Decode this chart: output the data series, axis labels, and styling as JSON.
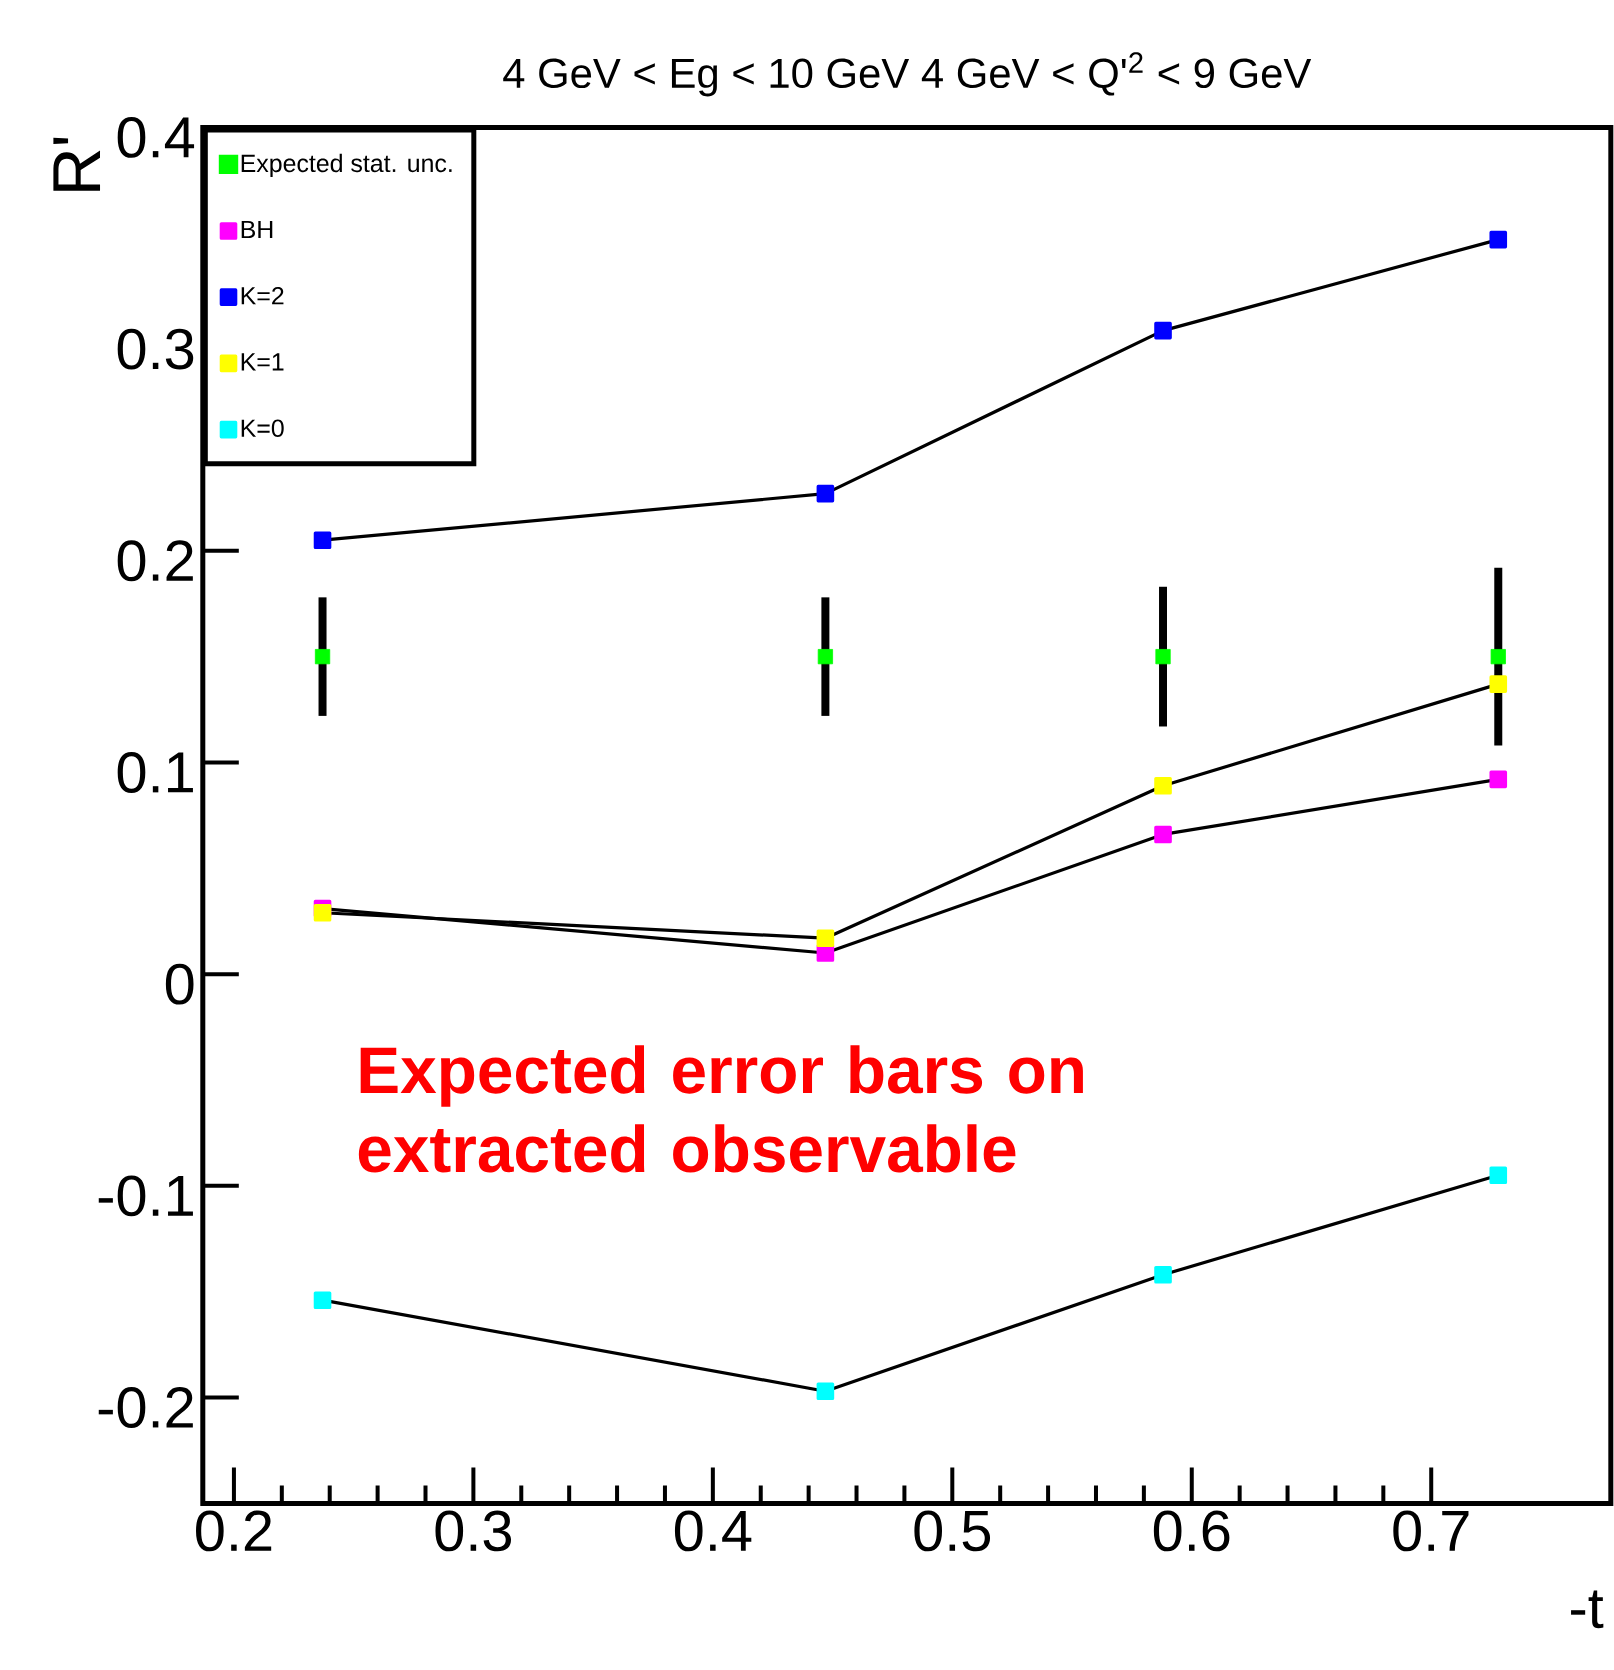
{
  "chart_data": {
    "type": "line",
    "title": "4 GeV < Eg < 10 GeV  4 GeV < Q'$^{2}$ < 9 GeV",
    "xlabel": "-t",
    "ylabel": "R'",
    "annotations": [
      "Expected error bars on extracted observable"
    ],
    "x": [
      0.237,
      0.447,
      0.588,
      0.728
    ],
    "xlim": [
      0.187,
      0.775
    ],
    "ylim": [
      -0.25,
      0.4
    ],
    "xticks": [
      0.2,
      0.3,
      0.4,
      0.5,
      0.6,
      0.7
    ],
    "yticks": [
      -0.2,
      -0.1,
      0,
      0.1,
      0.2,
      0.3,
      0.4
    ],
    "legend": "top left",
    "marker": "square",
    "series": [
      {
        "name": "Expected stat. unc.",
        "type": "scatter",
        "color": "#00ff00",
        "values": [
          0.15,
          0.15,
          0.15,
          0.15
        ],
        "errors": [
          0.028,
          0.028,
          0.033,
          0.042
        ]
      },
      {
        "name": "BH",
        "color": "#ff00ff",
        "values": [
          0.031,
          0.01,
          0.066,
          0.092
        ]
      },
      {
        "name": "K=2",
        "color": "#0000ff",
        "values": [
          0.205,
          0.227,
          0.304,
          0.347
        ]
      },
      {
        "name": "K=1",
        "color": "#ffff00",
        "values": [
          0.029,
          0.017,
          0.089,
          0.137
        ]
      },
      {
        "name": "K=0",
        "color": "#00ffff",
        "values": [
          -0.154,
          -0.197,
          -0.142,
          -0.095
        ]
      }
    ]
  }
}
